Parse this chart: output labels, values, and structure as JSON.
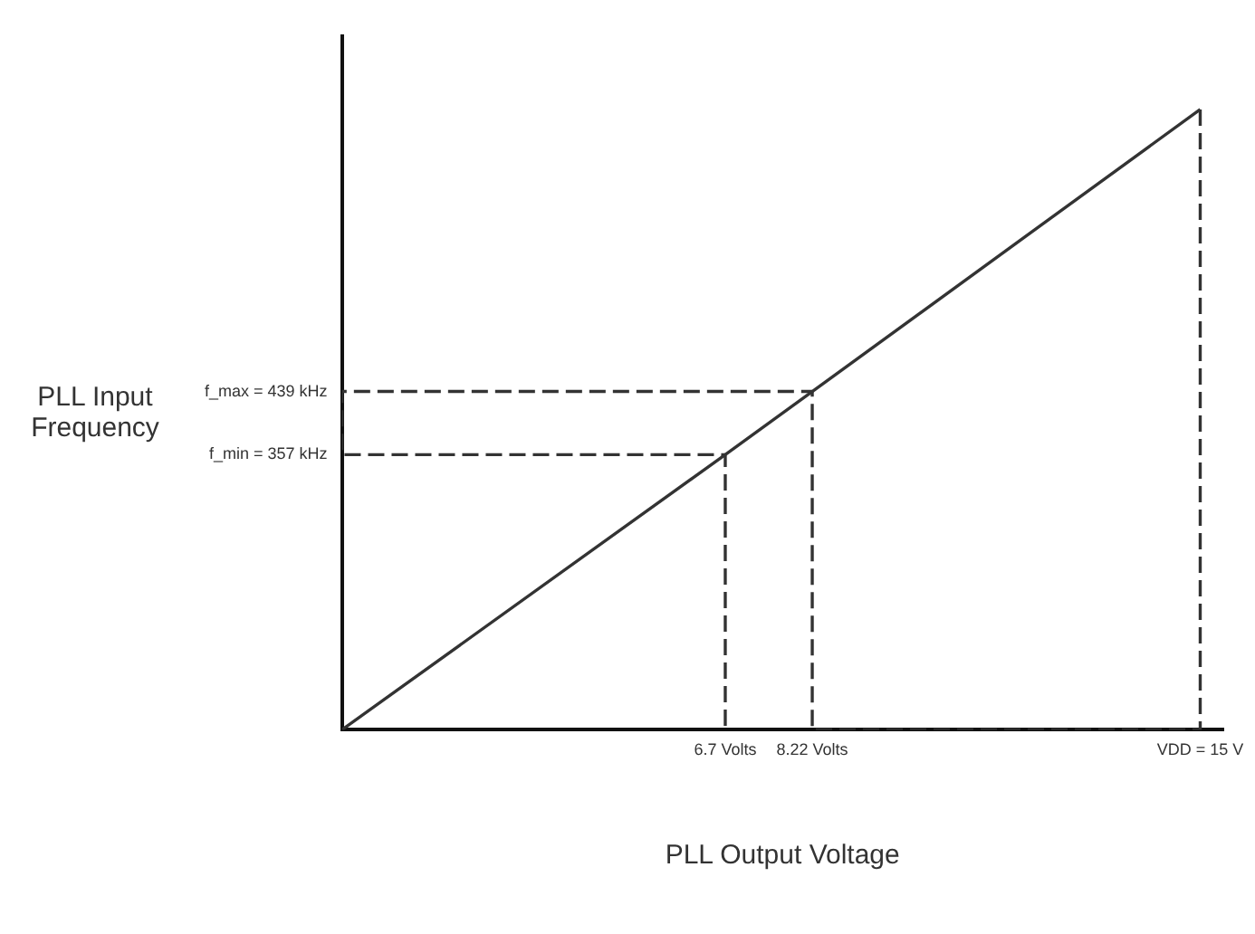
{
  "chart_data": {
    "type": "line",
    "xlabel": "PLL Output Voltage",
    "ylabel": "PLL Input Frequency",
    "xlim": [
      0,
      15.4
    ],
    "ylim": [
      0,
      900
    ],
    "xticks": [
      {
        "value": 6.7,
        "label": "6.7 Volts"
      },
      {
        "value": 8.22,
        "label": "8.22 Volts"
      },
      {
        "value": 15,
        "label": "VDD = 15 V"
      }
    ],
    "yticks": [
      {
        "value": 357,
        "label": "f_min = 357 kHz"
      },
      {
        "value": 439,
        "label": "f_max = 439 kHz"
      }
    ],
    "grid": false,
    "legend": false,
    "marker": "none",
    "series": [
      {
        "color": "#333333",
        "x": [
          0,
          6.7,
          8.22,
          15
        ],
        "values": [
          0,
          357,
          439,
          805
        ],
        "line_style": "solid"
      },
      {
        "color": "#333333",
        "x": [
          15,
          15,
          8.22,
          8.22,
          0,
          0,
          6.7,
          6.7
        ],
        "values": [
          805,
          0,
          0,
          439,
          439,
          357,
          357,
          0
        ],
        "line_style": "dashed"
      }
    ]
  }
}
